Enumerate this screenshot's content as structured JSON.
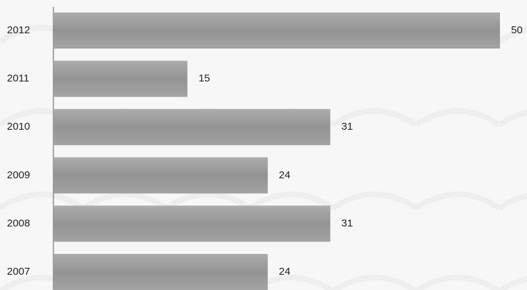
{
  "chart_data": {
    "type": "hbar",
    "categories": [
      "2012",
      "2011",
      "2010",
      "2009",
      "2008",
      "2007"
    ],
    "values": [
      50,
      15,
      31,
      24,
      31,
      24
    ],
    "color": "#9a9a9a",
    "xlim": [
      0,
      50
    ]
  }
}
